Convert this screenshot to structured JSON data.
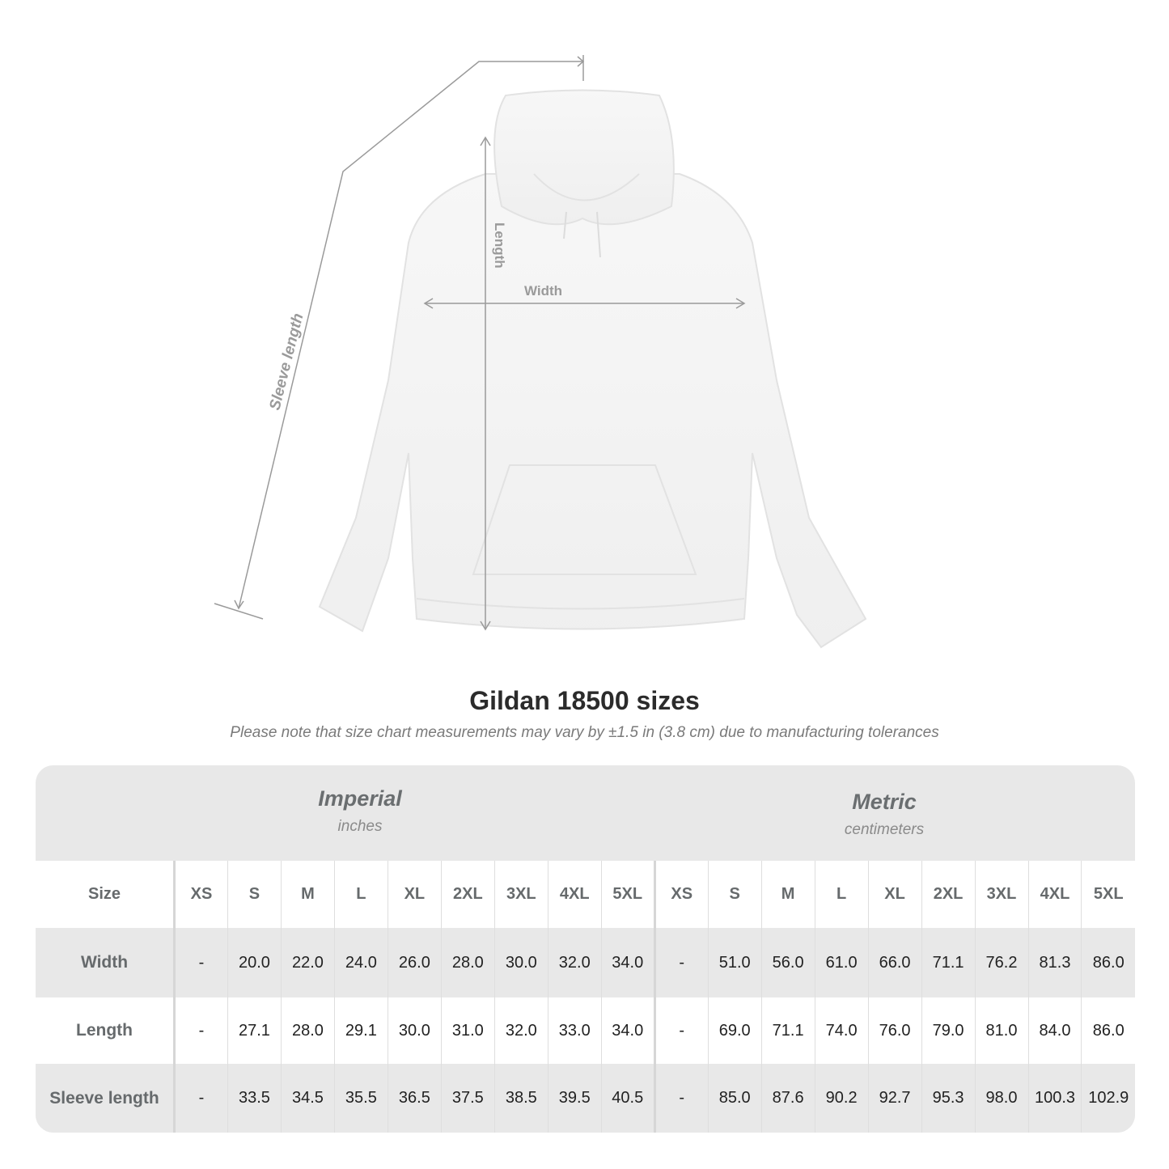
{
  "illustration": {
    "labels": {
      "length": "Length",
      "width": "Width",
      "sleeve_length": "Sleeve length"
    },
    "garment_color": "#ffffff",
    "measure_line_color": "#9a9a9a"
  },
  "title": "Gildan 18500 sizes",
  "subtitle": "Please note that size chart measurements may vary by ±1.5 in (3.8 cm) due to manufacturing tolerances",
  "imperial": {
    "name": "Imperial",
    "unit": "inches"
  },
  "metric": {
    "name": "Metric",
    "unit": "centimeters"
  },
  "table": {
    "size_label": "Size",
    "sizes": [
      "XS",
      "S",
      "M",
      "L",
      "XL",
      "2XL",
      "3XL",
      "4XL",
      "5XL"
    ],
    "rows": [
      {
        "label": "Width",
        "imperial": [
          "-",
          "20.0",
          "22.0",
          "24.0",
          "26.0",
          "28.0",
          "30.0",
          "32.0",
          "34.0"
        ],
        "metric": [
          "-",
          "51.0",
          "56.0",
          "61.0",
          "66.0",
          "71.1",
          "76.2",
          "81.3",
          "86.0"
        ]
      },
      {
        "label": "Length",
        "imperial": [
          "-",
          "27.1",
          "28.0",
          "29.1",
          "30.0",
          "31.0",
          "32.0",
          "33.0",
          "34.0"
        ],
        "metric": [
          "-",
          "69.0",
          "71.1",
          "74.0",
          "76.0",
          "79.0",
          "81.0",
          "84.0",
          "86.0"
        ]
      },
      {
        "label": "Sleeve length",
        "imperial": [
          "-",
          "33.5",
          "34.5",
          "35.5",
          "36.5",
          "37.5",
          "38.5",
          "39.5",
          "40.5"
        ],
        "metric": [
          "-",
          "85.0",
          "87.6",
          "90.2",
          "92.7",
          "95.3",
          "98.0",
          "100.3",
          "102.9"
        ]
      }
    ]
  }
}
